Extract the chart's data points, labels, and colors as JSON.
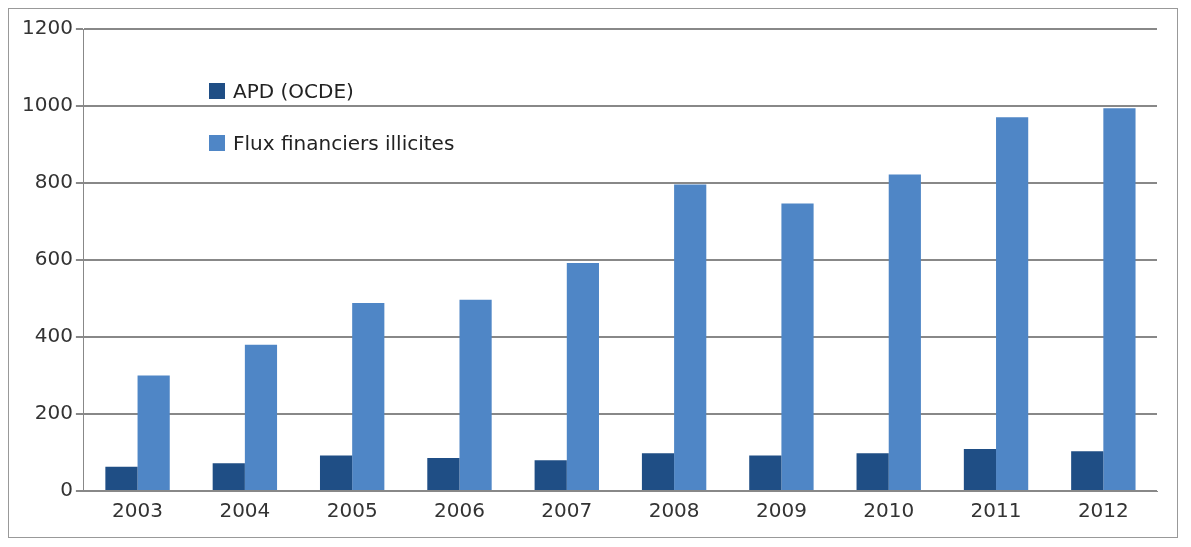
{
  "chart_data": {
    "type": "bar",
    "categories": [
      "2003",
      "2004",
      "2005",
      "2006",
      "2007",
      "2008",
      "2009",
      "2010",
      "2011",
      "2012"
    ],
    "series": [
      {
        "name": "APD (OCDE)",
        "color": "#1f4e85",
        "values": [
          63,
          72,
          92,
          86,
          80,
          98,
          92,
          98,
          109,
          103
        ]
      },
      {
        "name": "Flux financiers illicites",
        "color": "#4f86c6",
        "values": [
          300,
          380,
          488,
          497,
          592,
          796,
          747,
          822,
          971,
          994
        ]
      }
    ],
    "ylim": [
      0,
      1200
    ],
    "yticks": [
      0,
      200,
      400,
      600,
      800,
      1000,
      1200
    ],
    "grid": "y",
    "legend": "top left"
  }
}
